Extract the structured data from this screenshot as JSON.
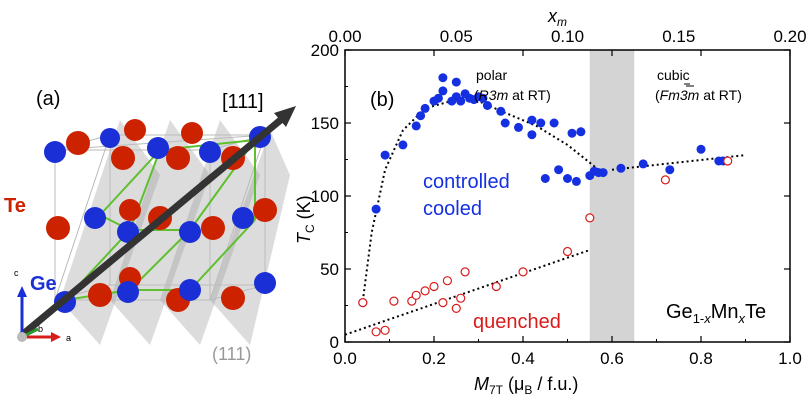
{
  "panel_a": {
    "label": "(a)",
    "direction_label": "[111]",
    "plane_label": "(111)",
    "atom_te": "Te",
    "atom_ge": "Ge",
    "axis_c": "c",
    "axis_b": "b",
    "axis_a": "a",
    "colors": {
      "te": "#cc2200",
      "ge": "#1a2fd6",
      "bond": "#5fbf2f",
      "plane": "#9a9a9a",
      "arrow": "#333333"
    }
  },
  "panel_b": {
    "label": "(b)",
    "region_polar_line1": "polar",
    "region_polar_paren_open": "(",
    "region_polar_group": "R3m",
    "region_polar_suffix": " at RT)",
    "region_cubic_line1": "cubic",
    "region_cubic_paren_open": "(",
    "region_cubic_group": "Fm3m",
    "region_cubic_suffix": " at RT)",
    "label_controlled_1": "controlled",
    "label_controlled_2": "cooled",
    "label_quenched": "quenched",
    "formula_base": "Ge",
    "formula_sub1": "1-",
    "formula_subx1": "x",
    "formula_mn": "Mn",
    "formula_subx2": "x",
    "formula_te": "Te",
    "colors": {
      "controlled": "#1530e0",
      "quenched": "#d81c1c",
      "band": "#d4d4d4"
    }
  },
  "chart_data": {
    "type": "scatter",
    "xlabel_main": "M",
    "xlabel_sub": "7T",
    "xlabel_units": " (μ",
    "xlabel_units_sub": "B",
    "xlabel_units_end": " / f.u.)",
    "ylabel_main": "T",
    "ylabel_sub": "C",
    "ylabel_units": " (K)",
    "top_xlabel_main": "x",
    "top_xlabel_sub": "m",
    "xlim": [
      0.0,
      1.0
    ],
    "ylim": [
      0,
      200
    ],
    "top_xlim": [
      0.0,
      0.2
    ],
    "x_ticks": [
      "0.0",
      "0.2",
      "0.4",
      "0.6",
      "0.8",
      "1.0"
    ],
    "y_ticks": [
      "0",
      "50",
      "100",
      "150",
      "200"
    ],
    "top_x_ticks": [
      "0.00",
      "0.05",
      "0.10",
      "0.15",
      "0.20"
    ],
    "band_x": [
      0.55,
      0.65
    ],
    "series": [
      {
        "name": "controlled cooled",
        "marker": "filled-circle",
        "color": "#1530e0",
        "points": [
          [
            0.04,
            27
          ],
          [
            0.07,
            91
          ],
          [
            0.09,
            128
          ],
          [
            0.13,
            135
          ],
          [
            0.16,
            148
          ],
          [
            0.17,
            155
          ],
          [
            0.18,
            160
          ],
          [
            0.2,
            165
          ],
          [
            0.21,
            167
          ],
          [
            0.22,
            172
          ],
          [
            0.22,
            181
          ],
          [
            0.24,
            165
          ],
          [
            0.25,
            178
          ],
          [
            0.25,
            168
          ],
          [
            0.26,
            165
          ],
          [
            0.27,
            170
          ],
          [
            0.28,
            167
          ],
          [
            0.29,
            166
          ],
          [
            0.3,
            168
          ],
          [
            0.31,
            167
          ],
          [
            0.32,
            162
          ],
          [
            0.35,
            158
          ],
          [
            0.36,
            150
          ],
          [
            0.39,
            147
          ],
          [
            0.42,
            152
          ],
          [
            0.42,
            142
          ],
          [
            0.44,
            150
          ],
          [
            0.45,
            112
          ],
          [
            0.47,
            150
          ],
          [
            0.48,
            118
          ],
          [
            0.5,
            112
          ],
          [
            0.51,
            143
          ],
          [
            0.52,
            110
          ],
          [
            0.53,
            144
          ],
          [
            0.55,
            114
          ],
          [
            0.56,
            117
          ],
          [
            0.57,
            116
          ],
          [
            0.58,
            116
          ],
          [
            0.62,
            119
          ],
          [
            0.67,
            122
          ],
          [
            0.73,
            118
          ],
          [
            0.8,
            132
          ],
          [
            0.84,
            124
          ],
          [
            0.85,
            124
          ]
        ]
      },
      {
        "name": "quenched",
        "marker": "open-circle",
        "color": "#d81c1c",
        "points": [
          [
            0.04,
            27
          ],
          [
            0.07,
            7
          ],
          [
            0.09,
            8
          ],
          [
            0.11,
            28
          ],
          [
            0.15,
            28
          ],
          [
            0.16,
            32
          ],
          [
            0.18,
            35
          ],
          [
            0.2,
            38
          ],
          [
            0.22,
            27
          ],
          [
            0.23,
            42
          ],
          [
            0.25,
            23
          ],
          [
            0.26,
            30
          ],
          [
            0.27,
            48
          ],
          [
            0.34,
            38
          ],
          [
            0.4,
            48
          ],
          [
            0.5,
            62
          ],
          [
            0.55,
            85
          ],
          [
            0.72,
            111
          ],
          [
            0.86,
            124
          ]
        ]
      }
    ],
    "guide_lines": [
      {
        "points": [
          [
            0.04,
            28
          ],
          [
            0.06,
            75
          ],
          [
            0.09,
            118
          ],
          [
            0.13,
            145
          ],
          [
            0.18,
            160
          ],
          [
            0.25,
            166
          ],
          [
            0.3,
            165
          ],
          [
            0.36,
            157
          ],
          [
            0.43,
            148
          ],
          [
            0.5,
            135
          ],
          [
            0.57,
            118
          ]
        ]
      },
      {
        "points": [
          [
            0.6,
            118
          ],
          [
            0.9,
            128
          ]
        ]
      },
      {
        "points": [
          [
            0.0,
            5
          ],
          [
            0.55,
            63
          ]
        ]
      }
    ]
  }
}
